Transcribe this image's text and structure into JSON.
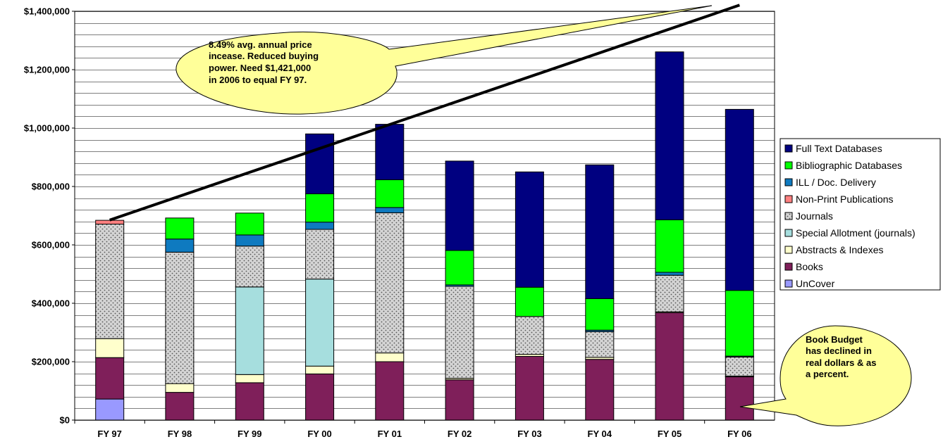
{
  "chart_data": {
    "type": "bar",
    "stacked": true,
    "categories": [
      "FY 97",
      "FY 98",
      "FY 99",
      "FY 00",
      "FY 01",
      "FY 02",
      "FY 03",
      "FY 04",
      "FY 05",
      "FY 06"
    ],
    "ylim": [
      0,
      1400000
    ],
    "yticks": [
      {
        "value": 0,
        "label": "$0"
      },
      {
        "value": 200000,
        "label": "$200,000"
      },
      {
        "value": 400000,
        "label": "$400,000"
      },
      {
        "value": 600000,
        "label": "$600,000"
      },
      {
        "value": 800000,
        "label": "$800,000"
      },
      {
        "value": 1000000,
        "label": "$1,000,000"
      },
      {
        "value": 1200000,
        "label": "$1,200,000"
      },
      {
        "value": 1400000,
        "label": "$1,400,000"
      }
    ],
    "minor_grid_step": 40000,
    "grid": true,
    "series": [
      {
        "name": "UnCover",
        "color": "#9999FF",
        "pattern": "none",
        "values": [
          72000,
          0,
          0,
          0,
          0,
          0,
          0,
          0,
          0,
          0
        ]
      },
      {
        "name": "Books",
        "color": "#7F1F5A",
        "pattern": "none",
        "values": [
          142000,
          95000,
          128000,
          158000,
          200000,
          138000,
          218000,
          208000,
          368000,
          148000
        ]
      },
      {
        "name": "Abstracts & Indexes",
        "color": "#FFFFCC",
        "pattern": "none",
        "values": [
          65000,
          30000,
          28000,
          27000,
          30000,
          5000,
          7000,
          7000,
          3000,
          3000
        ]
      },
      {
        "name": "Special Allotment (journals)",
        "color": "#A6DEDE",
        "pattern": "none",
        "values": [
          0,
          0,
          300000,
          298000,
          0,
          0,
          0,
          0,
          0,
          0
        ]
      },
      {
        "name": "Journals",
        "color": "#D4D4D4",
        "pattern": "dots",
        "values": [
          392000,
          450000,
          140000,
          170000,
          480000,
          315000,
          130000,
          88000,
          125000,
          65000
        ]
      },
      {
        "name": "Non-Print Publications",
        "color": "#FF8080",
        "pattern": "none",
        "values": [
          13000,
          0,
          0,
          0,
          0,
          0,
          0,
          0,
          0,
          0
        ]
      },
      {
        "name": "ILL / Doc. Delivery",
        "color": "#0E7AC0",
        "pattern": "none",
        "values": [
          0,
          45000,
          38000,
          25000,
          18000,
          5000,
          0,
          5000,
          10000,
          3000
        ]
      },
      {
        "name": "Bibliographic Databases",
        "color": "#00FF00",
        "pattern": "none",
        "values": [
          0,
          72000,
          75000,
          97000,
          95000,
          118000,
          100000,
          108000,
          180000,
          225000
        ]
      },
      {
        "name": "Full Text Databases",
        "color": "#000080",
        "pattern": "none",
        "values": [
          0,
          0,
          0,
          205000,
          190000,
          306000,
          395000,
          458000,
          575000,
          620000
        ]
      }
    ],
    "legend": {
      "placement": "right",
      "order": [
        "Full Text Databases",
        "Bibliographic Databases",
        "ILL / Doc. Delivery",
        "Non-Print Publications",
        "Journals",
        "Special Allotment (journals)",
        "Abstracts & Indexes",
        "Books",
        "UnCover"
      ]
    },
    "trend_line": {
      "from": {
        "category": "FY 97",
        "value": 685000
      },
      "to": {
        "category": "FY 06",
        "value": 1421000
      }
    },
    "annotations": [
      {
        "id": "price",
        "lines": [
          "8.49% avg. annual price",
          "incease.  Reduced buying",
          "power. Need $1,421,000",
          "in 2006 to equal FY 97."
        ]
      },
      {
        "id": "books",
        "lines": [
          "Book Budget",
          "has declined in",
          "real dollars & as",
          "a percent."
        ]
      }
    ]
  }
}
